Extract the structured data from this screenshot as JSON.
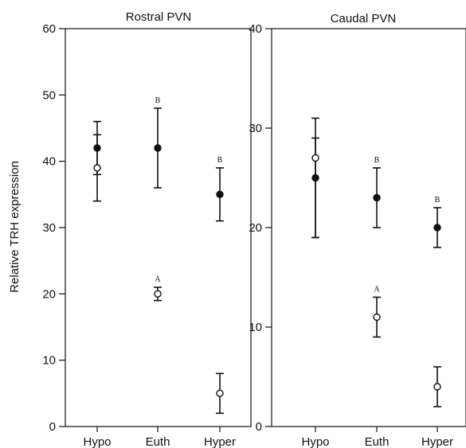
{
  "ylabel": "Relative TRH expression",
  "chart_data": [
    {
      "type": "scatter",
      "title": "Rostral PVN",
      "ylabel": "Relative TRH expression",
      "xlabel": "",
      "categories": [
        "Hypo",
        "Euth",
        "Hyper"
      ],
      "ylim": [
        0,
        60
      ],
      "yticks": [
        0,
        10,
        20,
        30,
        40,
        50,
        60
      ],
      "grid": false,
      "series": [
        {
          "marker": "filled-circle",
          "values": [
            42,
            42,
            35
          ],
          "error_low": [
            38,
            36,
            31
          ],
          "error_high": [
            46,
            48,
            39
          ],
          "labels": [
            "",
            "B",
            "B"
          ]
        },
        {
          "marker": "open-circle",
          "values": [
            39,
            20,
            5
          ],
          "error_low": [
            34,
            19,
            2
          ],
          "error_high": [
            44,
            21,
            8
          ],
          "labels": [
            "",
            "A",
            ""
          ]
        }
      ]
    },
    {
      "type": "scatter",
      "title": "Caudal PVN",
      "xlabel": "",
      "categories": [
        "Hypo",
        "Euth",
        "Hyper"
      ],
      "ylim": [
        0,
        40
      ],
      "yticks": [
        0,
        10,
        20,
        30,
        40
      ],
      "grid": false,
      "series": [
        {
          "marker": "filled-circle",
          "values": [
            25,
            23,
            20
          ],
          "error_low": [
            19,
            20,
            18
          ],
          "error_high": [
            29,
            26,
            22
          ],
          "labels": [
            "",
            "B",
            "B"
          ]
        },
        {
          "marker": "open-circle",
          "values": [
            27,
            11,
            4
          ],
          "error_low": [
            19,
            9,
            2
          ],
          "error_high": [
            31,
            13,
            6
          ],
          "labels": [
            "",
            "A",
            ""
          ]
        }
      ]
    }
  ]
}
